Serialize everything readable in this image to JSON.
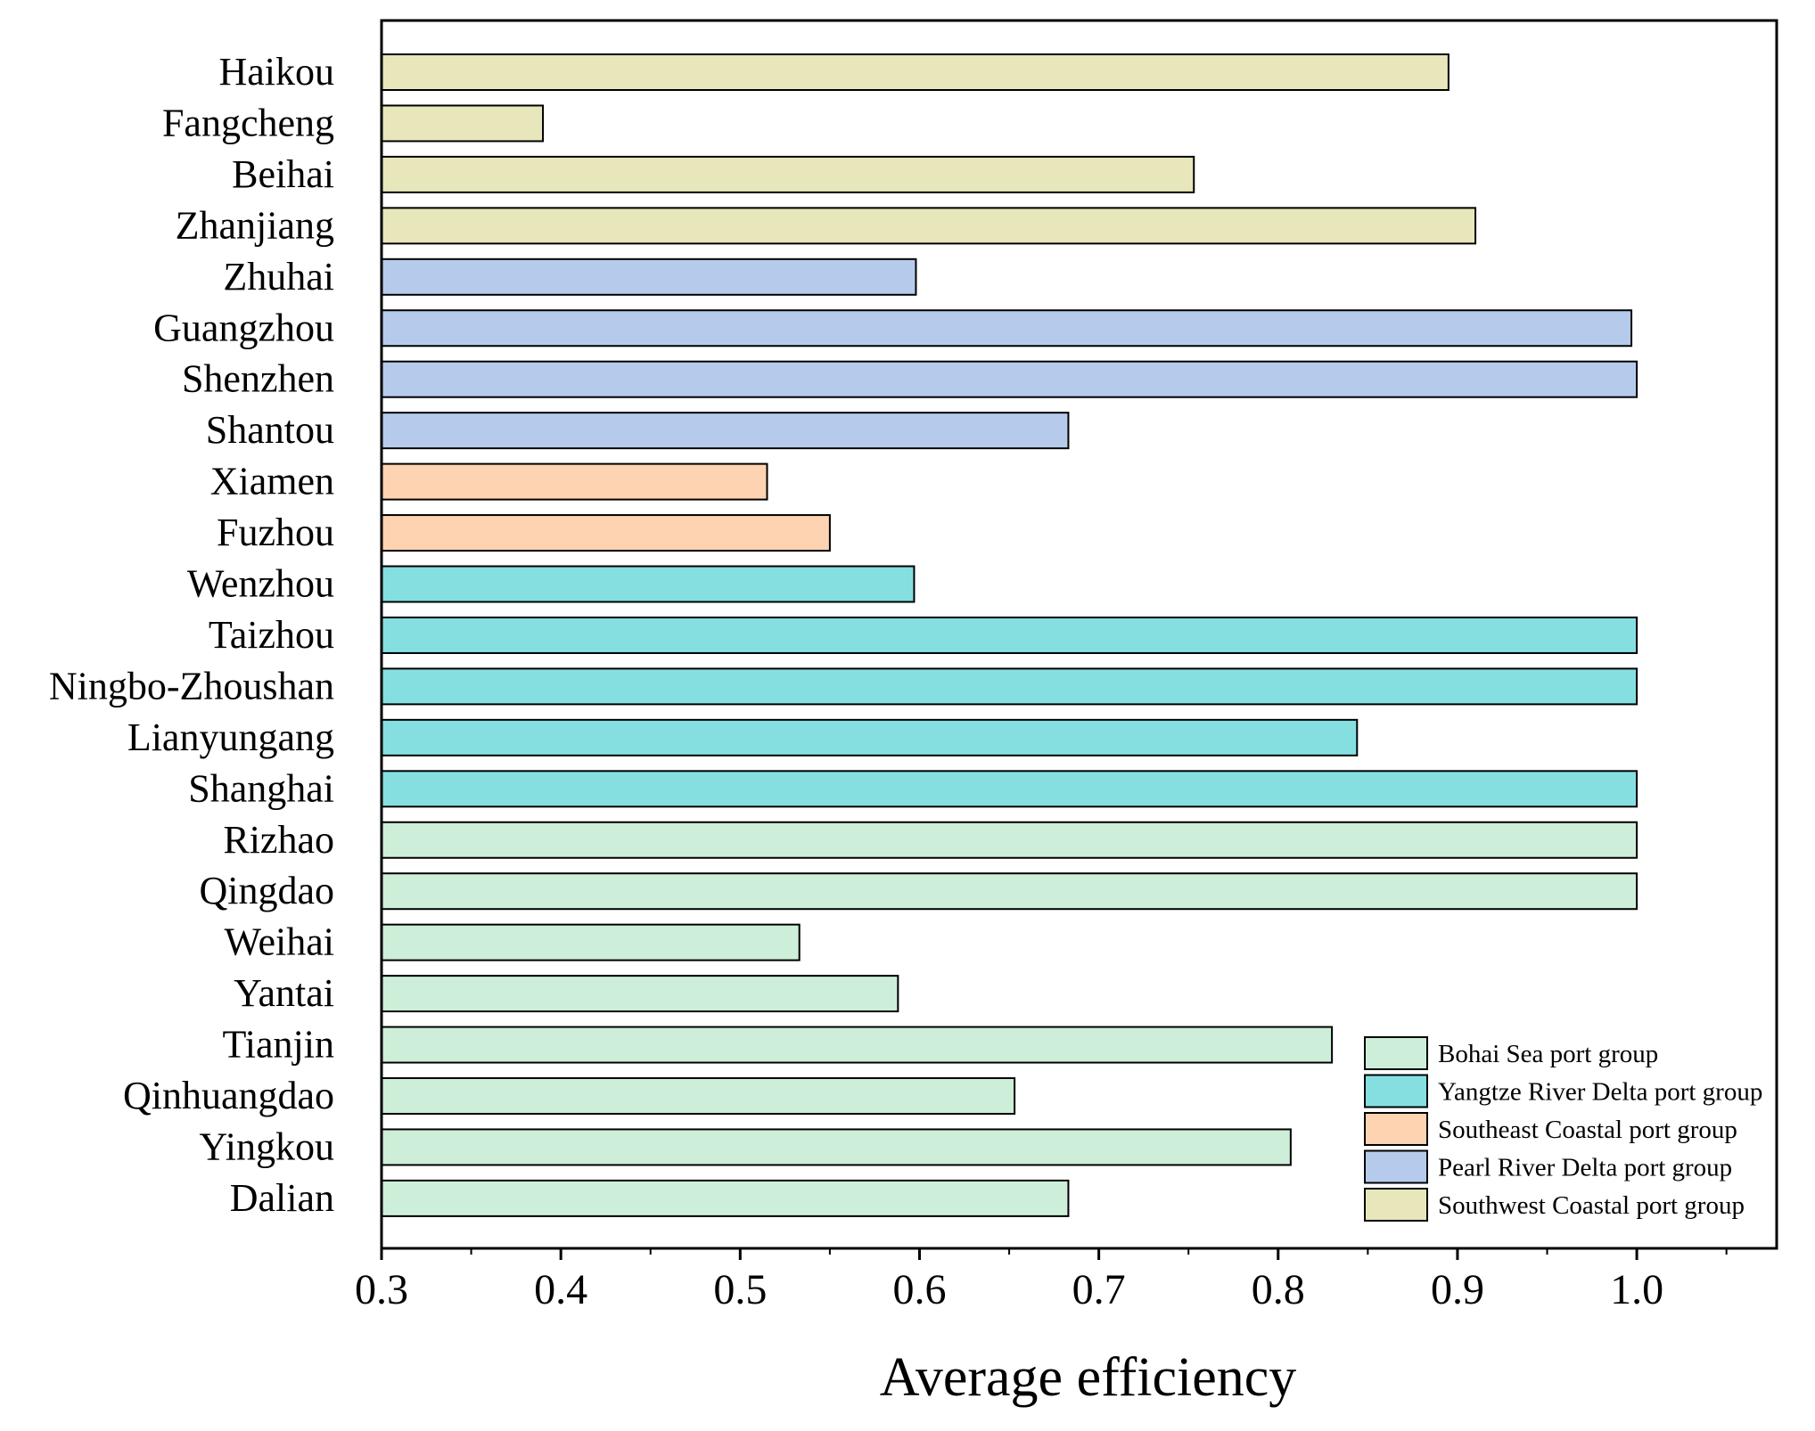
{
  "chart_data": {
    "type": "bar",
    "orientation": "horizontal",
    "title": "",
    "xlabel": "Average efficiency",
    "ylabel": "",
    "xlim": [
      0.3,
      1.078
    ],
    "xticks": [
      "0.3",
      "0.4",
      "0.5",
      "0.6",
      "0.7",
      "0.8",
      "0.9",
      "1.0"
    ],
    "grid": false,
    "legend_position": "bottom-right",
    "groups": [
      {
        "name": "Bohai Sea port group",
        "color": "#cdeed8"
      },
      {
        "name": "Yangtze River Delta port group",
        "color": "#85dfe1"
      },
      {
        "name": "Southeast Coastal port group",
        "color": "#fdd3b1"
      },
      {
        "name": "Pearl River Delta port group",
        "color": "#b6cbec"
      },
      {
        "name": "Southwest Coastal port group",
        "color": "#e8e7bb"
      }
    ],
    "bars": [
      {
        "label": "Haikou",
        "value": 0.895,
        "group": 4
      },
      {
        "label": "Fangcheng",
        "value": 0.39,
        "group": 4
      },
      {
        "label": "Beihai",
        "value": 0.753,
        "group": 4
      },
      {
        "label": "Zhanjiang",
        "value": 0.91,
        "group": 4
      },
      {
        "label": "Zhuhai",
        "value": 0.598,
        "group": 3
      },
      {
        "label": "Guangzhou",
        "value": 0.997,
        "group": 3
      },
      {
        "label": "Shenzhen",
        "value": 1.0,
        "group": 3
      },
      {
        "label": "Shantou",
        "value": 0.683,
        "group": 3
      },
      {
        "label": "Xiamen",
        "value": 0.515,
        "group": 2
      },
      {
        "label": "Fuzhou",
        "value": 0.55,
        "group": 2
      },
      {
        "label": "Wenzhou",
        "value": 0.597,
        "group": 1
      },
      {
        "label": "Taizhou",
        "value": 1.0,
        "group": 1
      },
      {
        "label": "Ningbo-Zhoushan",
        "value": 1.0,
        "group": 1
      },
      {
        "label": "Lianyungang",
        "value": 0.844,
        "group": 1
      },
      {
        "label": "Shanghai",
        "value": 1.0,
        "group": 1
      },
      {
        "label": "Rizhao",
        "value": 1.0,
        "group": 0
      },
      {
        "label": "Qingdao",
        "value": 1.0,
        "group": 0
      },
      {
        "label": "Weihai",
        "value": 0.533,
        "group": 0
      },
      {
        "label": "Yantai",
        "value": 0.588,
        "group": 0
      },
      {
        "label": "Tianjin",
        "value": 0.83,
        "group": 0
      },
      {
        "label": "Qinhuangdao",
        "value": 0.653,
        "group": 0
      },
      {
        "label": "Yingkou",
        "value": 0.807,
        "group": 0
      },
      {
        "label": "Dalian",
        "value": 0.683,
        "group": 0
      }
    ]
  }
}
